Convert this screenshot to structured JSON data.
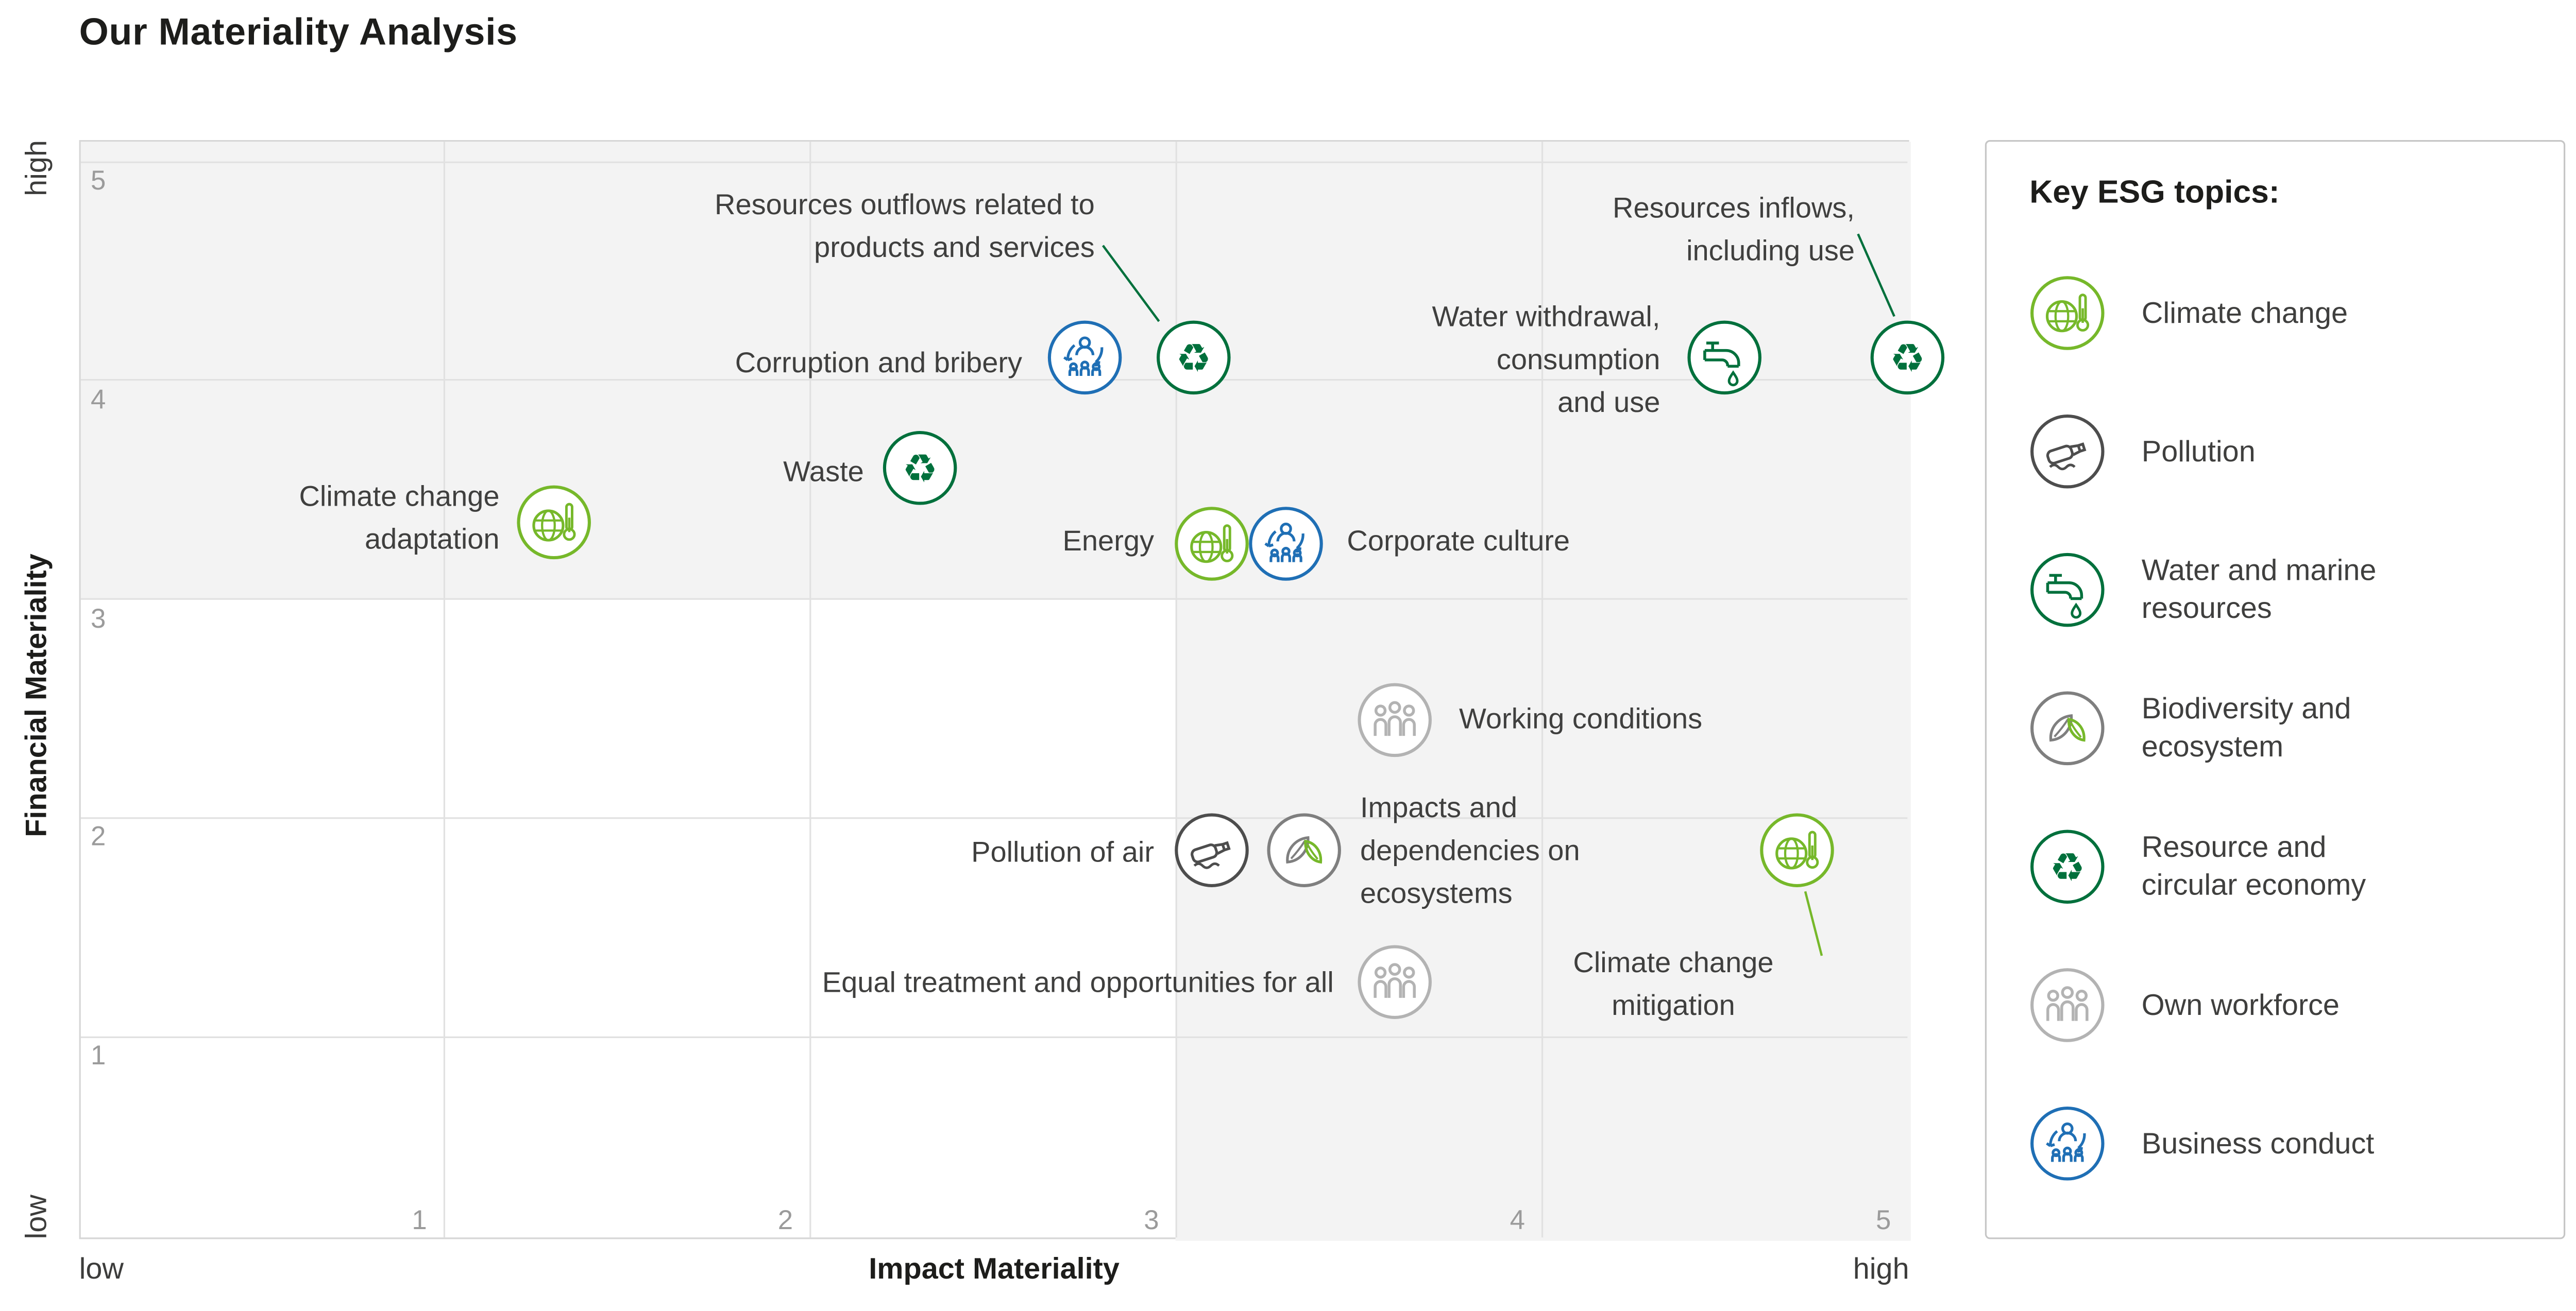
{
  "title": "Our Materiality Analysis",
  "axes": {
    "x_title": "Impact Materiality",
    "y_title": "Financial Materiality",
    "x_min_label": "low",
    "x_max_label": "high",
    "y_min_label": "low",
    "y_max_label": "high",
    "x_ticks": [
      1,
      2,
      3,
      4,
      5
    ],
    "y_ticks": [
      1,
      2,
      3,
      4,
      5
    ]
  },
  "colors": {
    "climate": "#76b82a",
    "pollution": "#4d4d4d",
    "water": "#00703c",
    "biodiversity": "#7f7f7f",
    "resource": "#00703c",
    "workforce": "#b3b3b3",
    "conduct": "#1f6fb5"
  },
  "legend": {
    "title": "Key ESG topics:",
    "items": [
      {
        "id": "climate",
        "icon": "climate-change-icon",
        "label": "Climate change",
        "label_lines": [
          "Climate change"
        ]
      },
      {
        "id": "pollution",
        "icon": "pollution-icon",
        "label": "Pollution",
        "label_lines": [
          "Pollution"
        ]
      },
      {
        "id": "water",
        "icon": "water-and-marine-resources-icon",
        "label": "Water and marine resources",
        "label_lines": [
          "Water and marine",
          "resources"
        ]
      },
      {
        "id": "biodiversity",
        "icon": "biodiversity-and-ecosystem-icon",
        "label": "Biodiversity and ecosystem",
        "label_lines": [
          "Biodiversity and",
          "ecosystem"
        ]
      },
      {
        "id": "resource",
        "icon": "resource-and-circular-economy-icon",
        "label": "Resource and circular economy",
        "label_lines": [
          "Resource and",
          "circular economy"
        ]
      },
      {
        "id": "workforce",
        "icon": "own-workforce-icon",
        "label": "Own workforce",
        "label_lines": [
          "Own workforce"
        ]
      },
      {
        "id": "conduct",
        "icon": "business-conduct-icon",
        "label": "Business conduct",
        "label_lines": [
          "Business conduct"
        ]
      }
    ]
  },
  "chart_data": {
    "type": "scatter",
    "title": "Our Materiality Analysis",
    "xlabel": "Impact Materiality",
    "ylabel": "Financial Materiality",
    "x_range": [
      0,
      5
    ],
    "y_range": [
      0,
      5
    ],
    "grid": true,
    "legend_position": "right",
    "points": [
      {
        "id": "climate-adaptation",
        "topic": "climate",
        "x": 1.3,
        "y": 3.35,
        "label": "Climate change adaptation",
        "label_lines": [
          "Climate change",
          "adaptation"
        ]
      },
      {
        "id": "waste",
        "topic": "resource",
        "x": 2.3,
        "y": 3.6,
        "label": "Waste",
        "label_lines": [
          "Waste"
        ]
      },
      {
        "id": "corruption-bribery",
        "topic": "conduct",
        "x": 2.75,
        "y": 4.1,
        "label": "Corruption and bribery",
        "label_lines": [
          "Corruption and bribery"
        ]
      },
      {
        "id": "resources-outflows",
        "topic": "resource",
        "x": 3.05,
        "y": 4.1,
        "label": "Resources outflows related to products and services",
        "label_lines": [
          "Resources outflows related to",
          "products and services"
        ]
      },
      {
        "id": "energy",
        "topic": "climate",
        "x": 3.1,
        "y": 3.25,
        "label": "Energy",
        "label_lines": [
          "Energy"
        ]
      },
      {
        "id": "corporate-culture",
        "topic": "conduct",
        "x": 3.3,
        "y": 3.25,
        "label": "Corporate culture",
        "label_lines": [
          "Corporate culture"
        ]
      },
      {
        "id": "working-conditions",
        "topic": "workforce",
        "x": 3.6,
        "y": 2.45,
        "label": "Working conditions",
        "label_lines": [
          "Working conditions"
        ]
      },
      {
        "id": "pollution-air",
        "topic": "pollution",
        "x": 3.1,
        "y": 1.85,
        "label": "Pollution of air",
        "label_lines": [
          "Pollution of air"
        ]
      },
      {
        "id": "impacts-ecosystems",
        "topic": "biodiversity",
        "x": 3.35,
        "y": 1.85,
        "label": "Impacts and dependencies on ecosystems",
        "label_lines": [
          "Impacts and",
          "dependencies on",
          "ecosystems"
        ]
      },
      {
        "id": "equal-treatment",
        "topic": "workforce",
        "x": 3.6,
        "y": 1.25,
        "label": "Equal treatment and opportunities for all",
        "label_lines": [
          "Equal treatment and opportunities for all"
        ]
      },
      {
        "id": "water-withdrawal",
        "topic": "water",
        "x": 4.5,
        "y": 4.1,
        "label": "Water withdrawal, consumption and use",
        "label_lines": [
          "Water withdrawal,",
          "consumption",
          "and use"
        ]
      },
      {
        "id": "resources-inflows",
        "topic": "resource",
        "x": 5.0,
        "y": 4.1,
        "label": "Resources inflows, including use",
        "label_lines": [
          "Resources inflows,",
          "including use"
        ]
      },
      {
        "id": "climate-mitigation",
        "topic": "climate",
        "x": 4.7,
        "y": 1.85,
        "label": "Climate change mitigation",
        "label_lines": [
          "Climate change",
          "mitigation"
        ]
      }
    ]
  }
}
